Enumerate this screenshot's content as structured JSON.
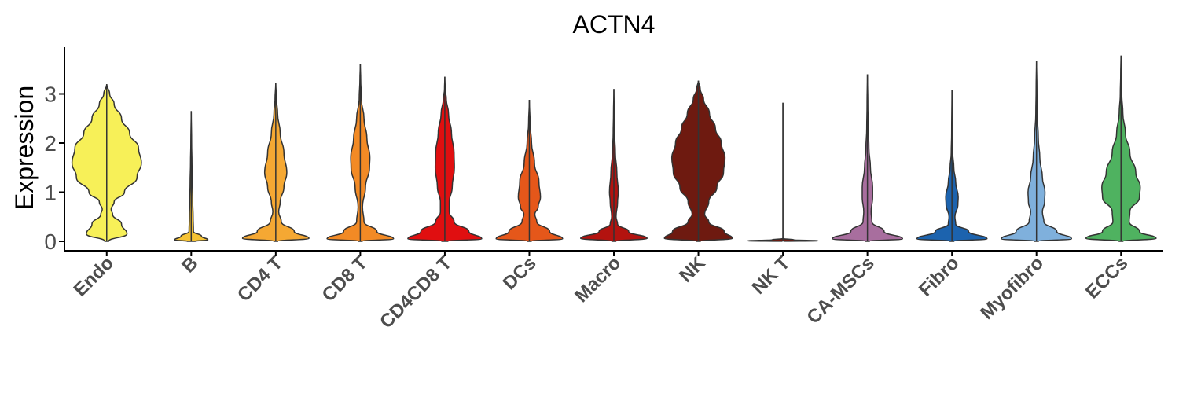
{
  "chart_data": {
    "type": "violin",
    "title": "ACTN4",
    "xlabel": "",
    "ylabel": "Expression",
    "ylim": [
      -0.2,
      3.9
    ],
    "yticks": [
      0,
      1,
      2,
      3
    ],
    "grid": false,
    "legend": "none",
    "categories": [
      "Endo",
      "B",
      "CD4 T",
      "CD8 T",
      "CD4CD8 T",
      "DCs",
      "Macro",
      "NK",
      "NK T",
      "CA-MSCs",
      "Fibro",
      "Myofibro",
      "ECCs"
    ],
    "series": [
      {
        "category": "Endo",
        "color": "#F7F058",
        "max": 3.2,
        "profile": [
          [
            0,
            0.05
          ],
          [
            0.15,
            0.55
          ],
          [
            0.35,
            0.4
          ],
          [
            0.55,
            0.16
          ],
          [
            0.65,
            0.12
          ],
          [
            0.8,
            0.2
          ],
          [
            1.0,
            0.48
          ],
          [
            1.3,
            0.82
          ],
          [
            1.6,
            0.94
          ],
          [
            1.9,
            0.86
          ],
          [
            2.2,
            0.62
          ],
          [
            2.5,
            0.4
          ],
          [
            2.8,
            0.2
          ],
          [
            3.0,
            0.08
          ],
          [
            3.2,
            0.0
          ]
        ]
      },
      {
        "category": "B",
        "color": "#F5C233",
        "max": 2.65,
        "profile": [
          [
            0,
            0.1
          ],
          [
            0.03,
            0.45
          ],
          [
            0.1,
            0.28
          ],
          [
            0.2,
            0.06
          ],
          [
            0.5,
            0.05
          ],
          [
            0.8,
            0.04
          ],
          [
            1.2,
            0.03
          ],
          [
            1.6,
            0.02
          ],
          [
            2.0,
            0.01
          ],
          [
            2.65,
            0.0
          ]
        ]
      },
      {
        "category": "CD4 T",
        "color": "#F5A833",
        "max": 3.22,
        "profile": [
          [
            0,
            0.05
          ],
          [
            0.06,
            0.9
          ],
          [
            0.2,
            0.5
          ],
          [
            0.4,
            0.15
          ],
          [
            0.6,
            0.08
          ],
          [
            0.8,
            0.12
          ],
          [
            1.1,
            0.22
          ],
          [
            1.4,
            0.3
          ],
          [
            1.8,
            0.22
          ],
          [
            2.2,
            0.12
          ],
          [
            2.6,
            0.05
          ],
          [
            2.9,
            0.02
          ],
          [
            3.22,
            0.0
          ]
        ]
      },
      {
        "category": "CD8 T",
        "color": "#F28A25",
        "max": 3.6,
        "profile": [
          [
            0,
            0.05
          ],
          [
            0.05,
            0.9
          ],
          [
            0.2,
            0.45
          ],
          [
            0.4,
            0.1
          ],
          [
            0.7,
            0.06
          ],
          [
            1.1,
            0.14
          ],
          [
            1.5,
            0.25
          ],
          [
            1.7,
            0.26
          ],
          [
            2.1,
            0.18
          ],
          [
            2.5,
            0.1
          ],
          [
            2.9,
            0.03
          ],
          [
            3.3,
            0.01
          ],
          [
            3.6,
            0.0
          ]
        ]
      },
      {
        "category": "CD4CD8 T",
        "color": "#E00F10",
        "max": 3.35,
        "profile": [
          [
            0,
            0.08
          ],
          [
            0.05,
            1.0
          ],
          [
            0.2,
            0.65
          ],
          [
            0.4,
            0.25
          ],
          [
            0.6,
            0.12
          ],
          [
            0.8,
            0.12
          ],
          [
            1.1,
            0.2
          ],
          [
            1.5,
            0.26
          ],
          [
            1.8,
            0.25
          ],
          [
            2.2,
            0.18
          ],
          [
            2.6,
            0.1
          ],
          [
            2.9,
            0.04
          ],
          [
            3.1,
            0.01
          ],
          [
            3.35,
            0.0
          ]
        ]
      },
      {
        "category": "DCs",
        "color": "#E5571A",
        "max": 2.88,
        "profile": [
          [
            0,
            0.05
          ],
          [
            0.05,
            0.9
          ],
          [
            0.2,
            0.55
          ],
          [
            0.4,
            0.2
          ],
          [
            0.55,
            0.15
          ],
          [
            0.7,
            0.24
          ],
          [
            0.9,
            0.3
          ],
          [
            1.2,
            0.26
          ],
          [
            1.6,
            0.14
          ],
          [
            2.0,
            0.06
          ],
          [
            2.4,
            0.02
          ],
          [
            2.88,
            0.0
          ]
        ]
      },
      {
        "category": "Macro",
        "color": "#B3130F",
        "max": 3.1,
        "profile": [
          [
            0,
            0.05
          ],
          [
            0.06,
            0.9
          ],
          [
            0.2,
            0.4
          ],
          [
            0.35,
            0.1
          ],
          [
            0.5,
            0.06
          ],
          [
            0.8,
            0.1
          ],
          [
            1.0,
            0.12
          ],
          [
            1.4,
            0.08
          ],
          [
            1.8,
            0.04
          ],
          [
            2.2,
            0.02
          ],
          [
            2.6,
            0.01
          ],
          [
            3.1,
            0.0
          ]
        ]
      },
      {
        "category": "NK",
        "color": "#6E1A10",
        "max": 3.27,
        "profile": [
          [
            0,
            0.05
          ],
          [
            0.06,
            0.92
          ],
          [
            0.2,
            0.7
          ],
          [
            0.4,
            0.28
          ],
          [
            0.55,
            0.17
          ],
          [
            0.8,
            0.28
          ],
          [
            1.1,
            0.5
          ],
          [
            1.4,
            0.68
          ],
          [
            1.7,
            0.72
          ],
          [
            2.0,
            0.62
          ],
          [
            2.3,
            0.46
          ],
          [
            2.6,
            0.3
          ],
          [
            2.9,
            0.14
          ],
          [
            3.1,
            0.05
          ],
          [
            3.27,
            0.0
          ]
        ]
      },
      {
        "category": "NK T",
        "color": "#6E1A10",
        "max": 2.82,
        "profile": [
          [
            0,
            0.0
          ],
          [
            0.01,
            0.95
          ],
          [
            0.03,
            0.3
          ],
          [
            0.06,
            0.0
          ],
          [
            2.82,
            0.0
          ]
        ]
      },
      {
        "category": "CA-MSCs",
        "color": "#A86E9E",
        "max": 3.4,
        "profile": [
          [
            0,
            0.05
          ],
          [
            0.05,
            0.95
          ],
          [
            0.2,
            0.45
          ],
          [
            0.4,
            0.12
          ],
          [
            0.6,
            0.1
          ],
          [
            0.9,
            0.14
          ],
          [
            1.1,
            0.14
          ],
          [
            1.5,
            0.08
          ],
          [
            1.9,
            0.04
          ],
          [
            2.3,
            0.02
          ],
          [
            2.8,
            0.01
          ],
          [
            3.4,
            0.0
          ]
        ]
      },
      {
        "category": "Fibro",
        "color": "#1C63AE",
        "max": 3.08,
        "profile": [
          [
            0,
            0.05
          ],
          [
            0.05,
            0.95
          ],
          [
            0.2,
            0.45
          ],
          [
            0.35,
            0.1
          ],
          [
            0.5,
            0.08
          ],
          [
            0.75,
            0.16
          ],
          [
            0.9,
            0.17
          ],
          [
            1.2,
            0.1
          ],
          [
            1.5,
            0.05
          ],
          [
            1.8,
            0.02
          ],
          [
            2.2,
            0.01
          ],
          [
            3.08,
            0.0
          ]
        ]
      },
      {
        "category": "Myofibro",
        "color": "#7FB0DC",
        "max": 3.68,
        "profile": [
          [
            0,
            0.05
          ],
          [
            0.05,
            0.95
          ],
          [
            0.2,
            0.55
          ],
          [
            0.4,
            0.2
          ],
          [
            0.6,
            0.16
          ],
          [
            0.8,
            0.22
          ],
          [
            1.0,
            0.23
          ],
          [
            1.3,
            0.16
          ],
          [
            1.7,
            0.09
          ],
          [
            2.1,
            0.05
          ],
          [
            2.6,
            0.02
          ],
          [
            3.1,
            0.01
          ],
          [
            3.68,
            0.0
          ]
        ]
      },
      {
        "category": "ECCs",
        "color": "#4FB260",
        "max": 3.78,
        "profile": [
          [
            0,
            0.05
          ],
          [
            0.06,
            0.95
          ],
          [
            0.2,
            0.5
          ],
          [
            0.4,
            0.22
          ],
          [
            0.6,
            0.24
          ],
          [
            0.9,
            0.5
          ],
          [
            1.1,
            0.52
          ],
          [
            1.4,
            0.4
          ],
          [
            1.8,
            0.24
          ],
          [
            2.2,
            0.12
          ],
          [
            2.6,
            0.05
          ],
          [
            3.0,
            0.02
          ],
          [
            3.4,
            0.01
          ],
          [
            3.78,
            0.0
          ]
        ]
      }
    ]
  }
}
